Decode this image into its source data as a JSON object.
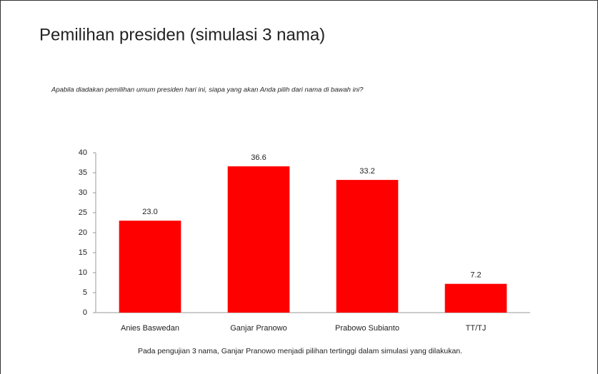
{
  "chart_data": {
    "type": "bar",
    "title": "Pemilihan presiden (simulasi 3 nama)",
    "subtitle": "Apabila diadakan pemilihan umum presiden hari ini, siapa yang akan Anda pilih dari nama di bawah ini?",
    "note": "Pada pengujian 3 nama, Ganjar Pranowo menjadi pilihan tertinggi dalam simulasi yang dilakukan.",
    "categories": [
      "Anies Baswedan",
      "Ganjar Pranowo",
      "Prabowo Subianto",
      "TT/TJ"
    ],
    "values": [
      23.0,
      36.6,
      33.2,
      7.2
    ],
    "value_labels": [
      "23.0",
      "36.6",
      "33.2",
      "7.2"
    ],
    "color": "#ff0000",
    "ylim": [
      0,
      40
    ],
    "yticks": [
      0,
      5,
      10,
      15,
      20,
      25,
      30,
      35,
      40
    ],
    "grid": false
  }
}
